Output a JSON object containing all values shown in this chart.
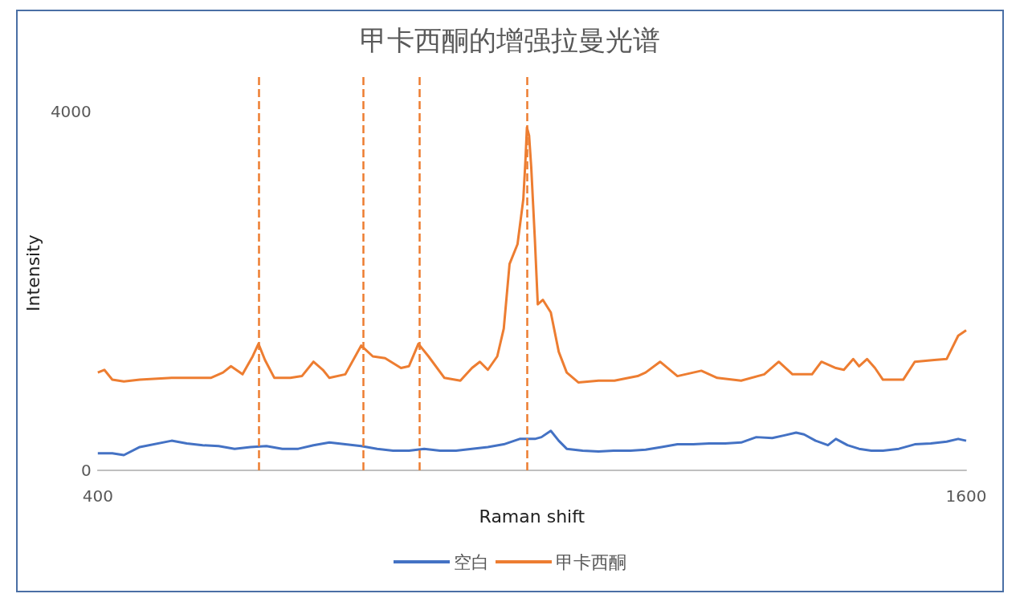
{
  "chart_data": {
    "type": "line",
    "title": "甲卡西酮的增强拉曼光谱",
    "xlabel": "Raman shift",
    "ylabel": "Intensity",
    "xlim": [
      400,
      1600
    ],
    "xticks": [
      400,
      1600
    ],
    "ylim": [
      0,
      4400
    ],
    "yticks": [
      0,
      4000
    ],
    "grid": false,
    "legend": "bottom",
    "marker": "none",
    "line_style": "solid",
    "series": [
      {
        "name": "空白",
        "color": "#4472c4",
        "x": [
          400,
          420,
          436,
          458,
          502,
          523,
          545,
          567,
          589,
          611,
          633,
          655,
          677,
          698,
          720,
          742,
          764,
          786,
          808,
          830,
          851,
          873,
          895,
          917,
          939,
          961,
          983,
          1004,
          1013,
          1026,
          1037,
          1048,
          1070,
          1092,
          1114,
          1136,
          1157,
          1179,
          1201,
          1223,
          1245,
          1267,
          1289,
          1310,
          1332,
          1349,
          1365,
          1376,
          1392,
          1409,
          1420,
          1436,
          1452,
          1469,
          1485,
          1507,
          1529,
          1551,
          1573,
          1589,
          1600
        ],
        "values": [
          190,
          190,
          170,
          260,
          330,
          300,
          280,
          270,
          240,
          260,
          270,
          240,
          240,
          280,
          310,
          290,
          270,
          240,
          220,
          220,
          240,
          220,
          220,
          240,
          260,
          290,
          350,
          350,
          370,
          440,
          330,
          240,
          220,
          210,
          220,
          220,
          230,
          260,
          290,
          290,
          300,
          300,
          310,
          370,
          360,
          390,
          420,
          400,
          330,
          280,
          350,
          280,
          240,
          220,
          220,
          240,
          290,
          300,
          320,
          350,
          330
        ]
      },
      {
        "name": "甲卡西酮",
        "color": "#ed7d31",
        "x": [
          400,
          409,
          420,
          436,
          458,
          502,
          556,
          573,
          584,
          600,
          614,
          622,
          631,
          644,
          666,
          682,
          698,
          711,
          720,
          742,
          764,
          780,
          797,
          819,
          830,
          843,
          857,
          879,
          901,
          917,
          928,
          939,
          952,
          961,
          969,
          980,
          988,
          991,
          993,
          996,
          999,
          1004,
          1008,
          1015,
          1026,
          1037,
          1048,
          1064,
          1092,
          1114,
          1146,
          1157,
          1177,
          1201,
          1234,
          1256,
          1289,
          1321,
          1341,
          1360,
          1387,
          1400,
          1420,
          1431,
          1444,
          1452,
          1463,
          1474,
          1485,
          1513,
          1529,
          1556,
          1573,
          1589,
          1600
        ],
        "values": [
          1090,
          1120,
          1010,
          990,
          1010,
          1030,
          1030,
          1090,
          1160,
          1070,
          1270,
          1410,
          1230,
          1030,
          1030,
          1050,
          1210,
          1120,
          1030,
          1070,
          1390,
          1270,
          1250,
          1140,
          1160,
          1410,
          1270,
          1030,
          1000,
          1140,
          1210,
          1120,
          1270,
          1580,
          2300,
          2520,
          3020,
          3460,
          3820,
          3730,
          3370,
          2570,
          1850,
          1900,
          1760,
          1320,
          1090,
          980,
          1000,
          1000,
          1050,
          1090,
          1210,
          1050,
          1110,
          1030,
          1000,
          1070,
          1210,
          1070,
          1070,
          1210,
          1140,
          1120,
          1240,
          1160,
          1240,
          1140,
          1010,
          1010,
          1210,
          1230,
          1240,
          1500,
          1560
        ]
      }
    ],
    "ref_lines": [
      {
        "axis": "x",
        "value": 622,
        "color": "#ed7d31",
        "line_style": "dashed"
      },
      {
        "axis": "x",
        "value": 767,
        "color": "#ed7d31",
        "line_style": "dashed"
      },
      {
        "axis": "x",
        "value": 844,
        "color": "#ed7d31",
        "line_style": "dashed"
      },
      {
        "axis": "x",
        "value": 993,
        "color": "#ed7d31",
        "line_style": "dashed"
      }
    ]
  }
}
